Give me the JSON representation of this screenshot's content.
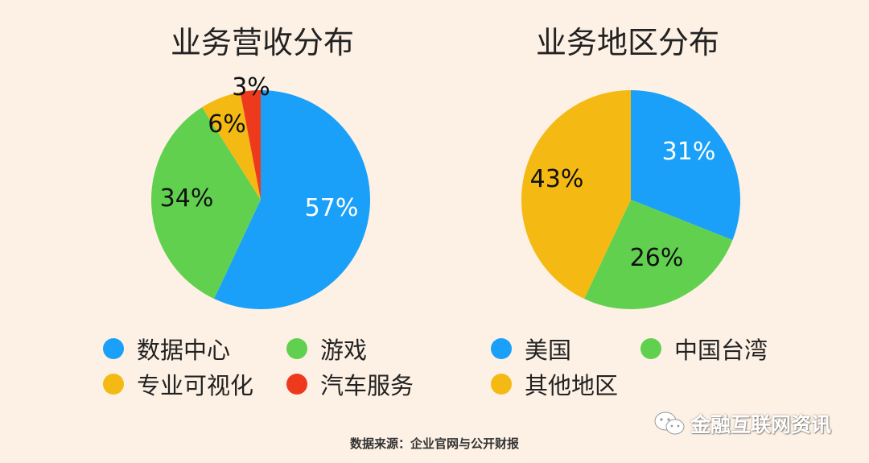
{
  "chart_data": [
    {
      "type": "pie",
      "title": "业务营收分布",
      "slices": [
        {
          "label": "数据中心",
          "value": 57,
          "display": "57%",
          "color": "#1aa0f8",
          "text_color": "#ffffff"
        },
        {
          "label": "游戏",
          "value": 34,
          "display": "34%",
          "color": "#61d04f",
          "text_color": "#111111"
        },
        {
          "label": "专业可视化",
          "value": 6,
          "display": "6%",
          "color": "#f5b913",
          "text_color": "#111111"
        },
        {
          "label": "汽车服务",
          "value": 3,
          "display": "3%",
          "color": "#ee3a1c",
          "text_color": "#111111"
        }
      ],
      "legend": [
        "数据中心",
        "游戏",
        "专业可视化",
        "汽车服务"
      ],
      "legend_placement": "bottom"
    },
    {
      "type": "pie",
      "title": "业务地区分布",
      "slices": [
        {
          "label": "美国",
          "value": 31,
          "display": "31%",
          "color": "#1aa0f8",
          "text_color": "#ffffff"
        },
        {
          "label": "中国台湾",
          "value": 26,
          "display": "26%",
          "color": "#61d04f",
          "text_color": "#111111"
        },
        {
          "label": "其他地区",
          "value": 43,
          "display": "43%",
          "color": "#f5b913",
          "text_color": "#111111"
        }
      ],
      "legend": [
        "美国",
        "中国台湾",
        "其他地区"
      ],
      "legend_placement": "bottom"
    }
  ],
  "footer": {
    "source": "数据来源：企业官网与公开财报",
    "watermark": "金融互联网资讯",
    "watermark_icon": "wechat-icon"
  }
}
